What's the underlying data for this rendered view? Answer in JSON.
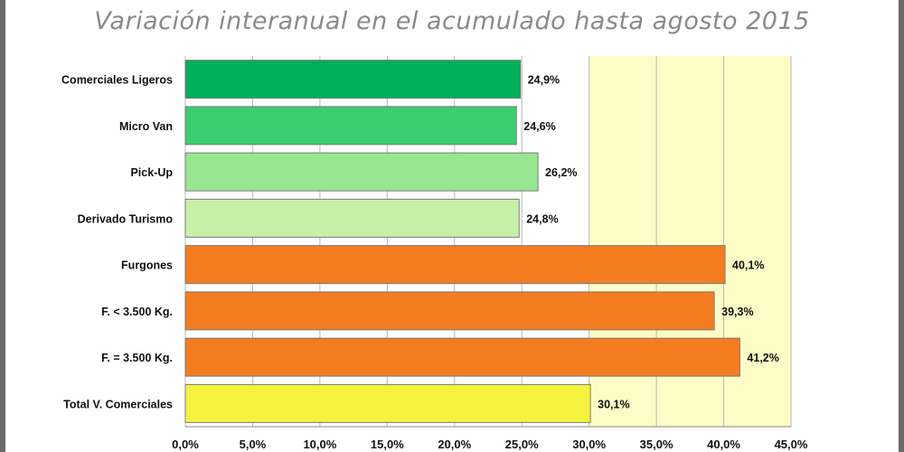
{
  "chart_data": {
    "type": "bar",
    "orientation": "horizontal",
    "title": "Variación interanual en el acumulado hasta agosto 2015",
    "categories": [
      "Comerciales Ligeros",
      "Micro Van",
      "Pick-Up",
      "Derivado Turismo",
      "Furgones",
      "F. < 3.500 Kg.",
      "F. = 3.500 Kg.",
      "Total V. Comerciales"
    ],
    "values": [
      24.9,
      24.6,
      26.2,
      24.8,
      40.1,
      39.3,
      41.2,
      30.1
    ],
    "value_labels": [
      "24,9%",
      "24,6%",
      "26,2%",
      "24,8%",
      "40,1%",
      "39,3%",
      "41,2%",
      "30,1%"
    ],
    "bar_colors": [
      "#00b05a",
      "#3ccd70",
      "#98e692",
      "#c8efa8",
      "#f47c20",
      "#f47c20",
      "#f47c20",
      "#f4f23c"
    ],
    "xlim": [
      0,
      45
    ],
    "xticks": [
      0,
      5,
      10,
      15,
      20,
      25,
      30,
      35,
      40,
      45
    ],
    "xtick_labels": [
      "0,0%",
      "5,0%",
      "10,0%",
      "15,0%",
      "20,0%",
      "25,0%",
      "30,0%",
      "35,0%",
      "40,0%",
      "45,0%"
    ],
    "grid": true,
    "highlight_band": [
      30,
      45
    ],
    "xlabel": "",
    "ylabel": ""
  },
  "colors": {
    "title": "#8a8a8a",
    "plot_background": "#ffffff",
    "highlight_band": "#fdfcc6",
    "gridline": "#b8b8b8",
    "bar_stroke": "#7a7a7a"
  }
}
